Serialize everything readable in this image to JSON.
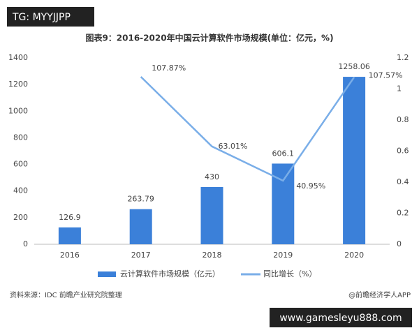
{
  "overlay": {
    "tag": "TG: MYYJJPP",
    "site": "www.gamesleyu888.com"
  },
  "chart_data": {
    "type": "bar",
    "title": "图表9：2016-2020年中国云计算软件市场规模(单位：亿元，%)",
    "categories": [
      "2016",
      "2017",
      "2018",
      "2019",
      "2020"
    ],
    "series": [
      {
        "name": "云计算软件市场规模（亿元）",
        "type": "bar",
        "color": "#3b80d9",
        "values": [
          126.9,
          263.79,
          430,
          606.1,
          1258.06
        ]
      },
      {
        "name": "同比增长（%）",
        "type": "line",
        "axis": "y2",
        "color": "#7aaee8",
        "values": [
          null,
          1.0787,
          0.6301,
          0.4095,
          1.0757
        ],
        "value_labels": [
          null,
          "107.87%",
          "63.01%",
          "40.95%",
          "107.57%"
        ]
      }
    ],
    "ylim": [
      0,
      1400
    ],
    "yticks": [
      0,
      200,
      400,
      600,
      800,
      1000,
      1200,
      1400
    ],
    "y2lim": [
      0,
      1.2
    ],
    "y2ticks": [
      0,
      0.2,
      0.4,
      0.6,
      0.8,
      1,
      1.2
    ],
    "grid": false
  },
  "footer": {
    "source": "资料来源：IDC 前瞻产业研究院整理",
    "credit": "@前瞻经济学人APP"
  }
}
